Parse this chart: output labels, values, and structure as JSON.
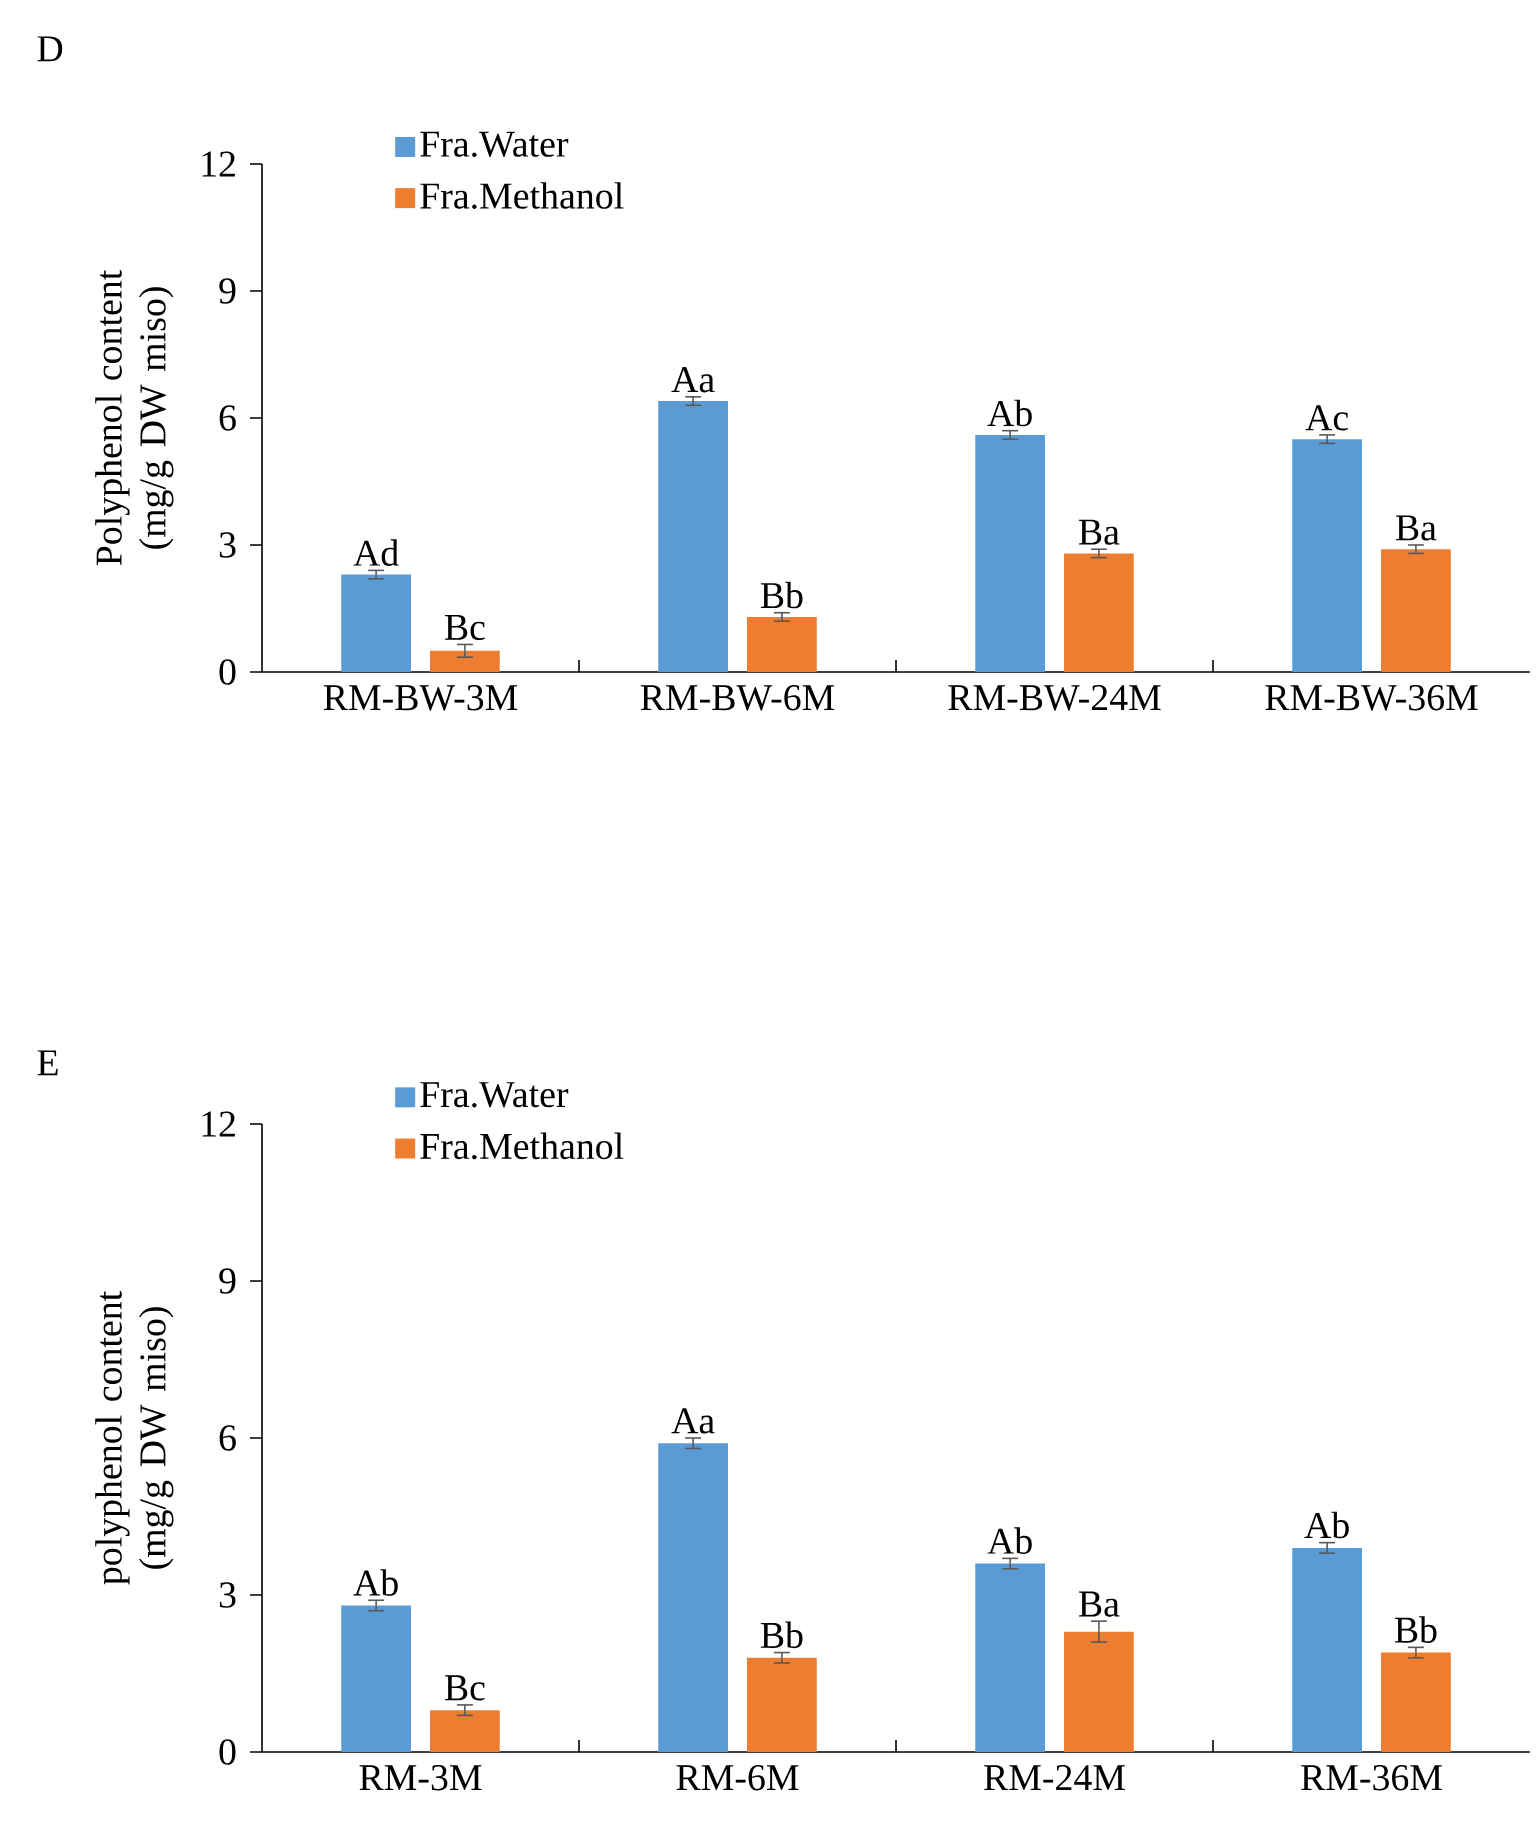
{
  "chart_data": [
    {
      "type": "bar",
      "title": "D",
      "ylabel": "Polyphenol content (mg/g DW miso)",
      "categories": [
        "RM-BW-3M",
        "RM-BW-6M",
        "RM-BW-24M",
        "RM-BW-36M"
      ],
      "series": [
        {
          "name": "Fra.Water",
          "color": "#5b9bd5",
          "values": [
            2.3,
            6.4,
            5.6,
            5.5
          ],
          "errors": [
            0.1,
            0.1,
            0.1,
            0.1
          ],
          "value_labels": [
            "Ad",
            "Aa",
            "Ab",
            "Ac"
          ]
        },
        {
          "name": "Fra.Methanol",
          "color": "#ed7d31",
          "values": [
            0.5,
            1.3,
            2.8,
            2.9
          ],
          "errors": [
            0.15,
            0.1,
            0.1,
            0.1
          ],
          "value_labels": [
            "Bc",
            "Bb",
            "Ba",
            "Ba"
          ]
        }
      ],
      "ylim": [
        0,
        12
      ],
      "yticks": [
        0,
        3,
        6,
        9,
        12
      ],
      "grid": false,
      "legend": "top left"
    },
    {
      "type": "bar",
      "title": "E",
      "ylabel": "polyphenol content (mg/g DW miso)",
      "categories": [
        "RM-3M",
        "RM-6M",
        "RM-24M",
        "RM-36M"
      ],
      "series": [
        {
          "name": "Fra.Water",
          "color": "#5b9bd5",
          "values": [
            2.8,
            5.9,
            3.6,
            3.9
          ],
          "errors": [
            0.1,
            0.1,
            0.1,
            0.1
          ],
          "value_labels": [
            "Ab",
            "Aa",
            "Ab",
            "Ab"
          ]
        },
        {
          "name": "Fra.Methanol",
          "color": "#ed7d31",
          "values": [
            0.8,
            1.8,
            2.3,
            1.9
          ],
          "errors": [
            0.1,
            0.1,
            0.2,
            0.1
          ],
          "value_labels": [
            "Bc",
            "Bb",
            "Ba",
            "Bb"
          ]
        }
      ],
      "ylim": [
        0,
        12
      ],
      "yticks": [
        0,
        3,
        6,
        9,
        12
      ],
      "grid": false,
      "legend": "top left"
    }
  ]
}
